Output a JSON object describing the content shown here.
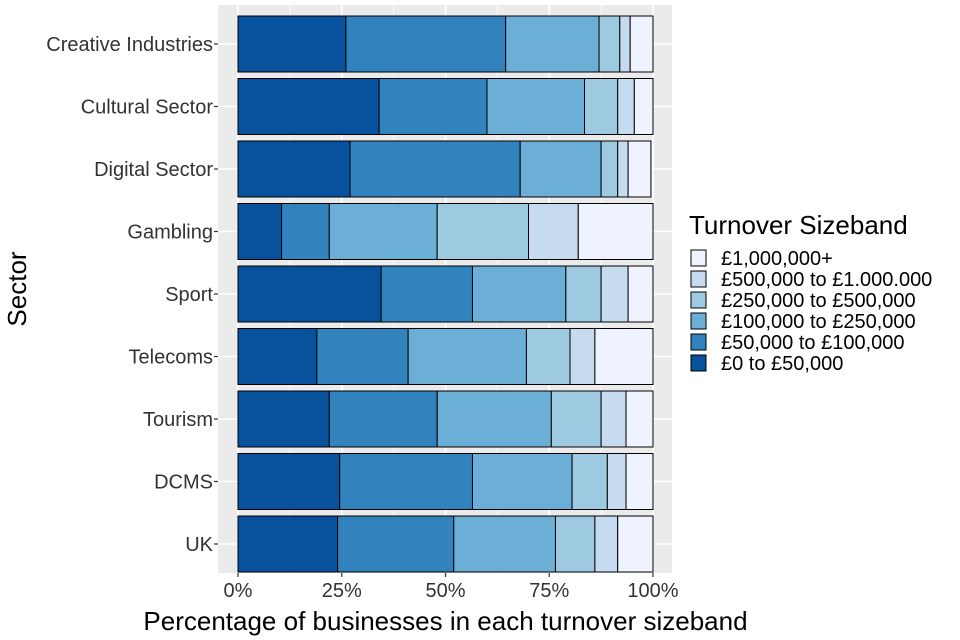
{
  "chart_data": {
    "type": "bar",
    "orientation": "horizontal",
    "stacked": true,
    "xlabel": "Percentage of businesses in each turnover sizeband",
    "ylabel": "Sector",
    "xlim": [
      0,
      100
    ],
    "x_ticks": [
      "0%",
      "25%",
      "50%",
      "75%",
      "100%"
    ],
    "grid": true,
    "legend": {
      "title": "Turnover Sizeband",
      "placement": "right"
    },
    "categories": [
      "Creative Industries",
      "Cultural Sector",
      "Digital Sector",
      "Gambling",
      "Sport",
      "Telecoms",
      "Tourism",
      "DCMS",
      "UK"
    ],
    "series": [
      {
        "name": "£0 to £50,000",
        "color": "#08519c",
        "values": [
          26,
          34,
          27,
          10.5,
          34.5,
          19,
          22,
          24.5,
          24
        ]
      },
      {
        "name": "£50,000 to £100,000",
        "color": "#3182bd",
        "values": [
          38.5,
          26,
          41,
          11.5,
          22,
          22,
          26,
          32,
          28
        ]
      },
      {
        "name": "£100,000 to £250,000",
        "color": "#6baed6",
        "values": [
          22.5,
          23.5,
          19.5,
          26,
          22.5,
          28.5,
          27.5,
          24,
          24.5
        ]
      },
      {
        "name": "£250,000 to £500,000",
        "color": "#9ecae1",
        "values": [
          5,
          8,
          4,
          22,
          8.5,
          10.5,
          12,
          8.5,
          9.5
        ]
      },
      {
        "name": "£500,000 to £1.000.000",
        "color": "#c6dbef",
        "values": [
          2.5,
          4,
          2.5,
          12,
          6.5,
          6,
          6,
          4.5,
          5.5
        ]
      },
      {
        "name": "£1,000,000+",
        "color": "#eff3ff",
        "values": [
          5.5,
          4.5,
          5.5,
          18,
          6,
          14,
          6.5,
          6.5,
          8.5
        ]
      }
    ]
  }
}
